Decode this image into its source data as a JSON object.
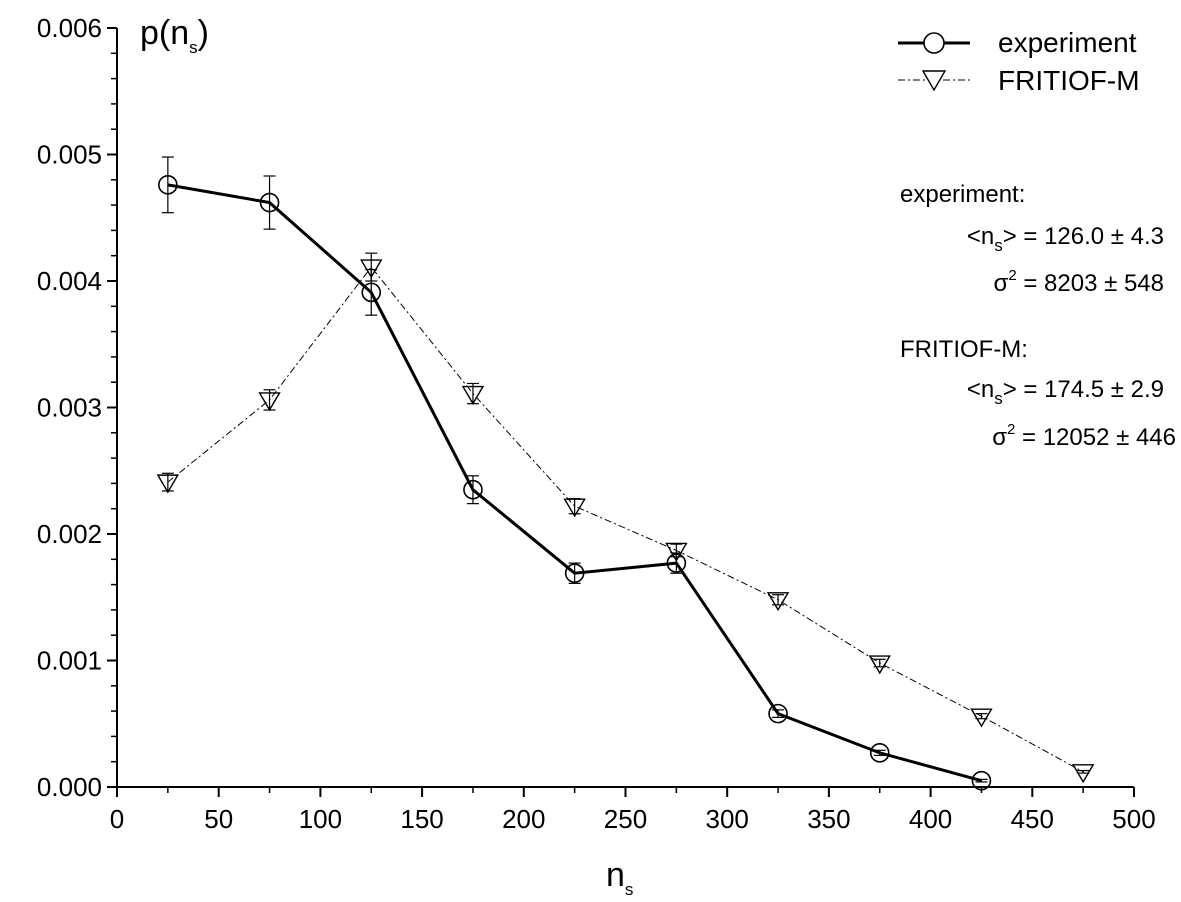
{
  "chart_data": {
    "type": "line",
    "xlabel": "n",
    "xlabel_sub": "s",
    "ylabel": "p(n",
    "ylabel_sub": "s",
    "ylabel_close": ")",
    "xlim": [
      0,
      500
    ],
    "ylim": [
      0,
      0.006
    ],
    "xticks": [
      "0",
      "50",
      "100",
      "150",
      "200",
      "250",
      "300",
      "350",
      "400",
      "450",
      "500"
    ],
    "xtick_values": [
      0,
      50,
      100,
      150,
      200,
      250,
      300,
      350,
      400,
      450,
      500
    ],
    "yticks": [
      "0.000",
      "0.001",
      "0.002",
      "0.003",
      "0.004",
      "0.005",
      "0.006"
    ],
    "ytick_values": [
      0,
      0.001,
      0.002,
      0.003,
      0.004,
      0.005,
      0.006
    ],
    "grid": false,
    "legend_position": "top-right",
    "series": [
      {
        "name": "experiment",
        "marker": "circle",
        "line_style": "solid",
        "x": [
          25,
          75,
          125,
          175,
          225,
          275,
          325,
          375,
          425
        ],
        "y": [
          0.00476,
          0.00462,
          0.00391,
          0.00235,
          0.00169,
          0.00177,
          0.00058,
          0.00027,
          5e-05
        ],
        "err": [
          0.00022,
          0.00021,
          0.00018,
          0.00011,
          8e-05,
          8e-05,
          3e-05,
          2e-05,
          1e-05
        ]
      },
      {
        "name": "FRITIOF-M",
        "marker": "triangle-down",
        "line_style": "dash-dot",
        "x": [
          25,
          75,
          125,
          175,
          225,
          275,
          325,
          375,
          425,
          475
        ],
        "y": [
          0.00241,
          0.00306,
          0.00411,
          0.00311,
          0.00222,
          0.00187,
          0.00148,
          0.00098,
          0.00056,
          0.00012
        ],
        "err": [
          7e-05,
          8e-05,
          0.00011,
          8e-05,
          6e-05,
          5e-05,
          4e-05,
          3e-05,
          2e-05,
          1e-05
        ]
      }
    ],
    "annotations": {
      "exp_header": "experiment:",
      "exp_mean_open": "<n",
      "exp_mean_sub": "s",
      "exp_mean_rest": "> = 126.0 ± 4.3",
      "exp_sigma_sym": "σ",
      "exp_sigma_sup": "2",
      "exp_sigma_rest": " = 8203 ± 548",
      "fri_header": "FRITIOF-M:",
      "fri_mean_open": "<n",
      "fri_mean_sub": "s",
      "fri_mean_rest": "> = 174.5 ± 2.9",
      "fri_sigma_sym": "σ",
      "fri_sigma_sup": "2",
      "fri_sigma_rest": " = 12052 ± 446"
    }
  }
}
